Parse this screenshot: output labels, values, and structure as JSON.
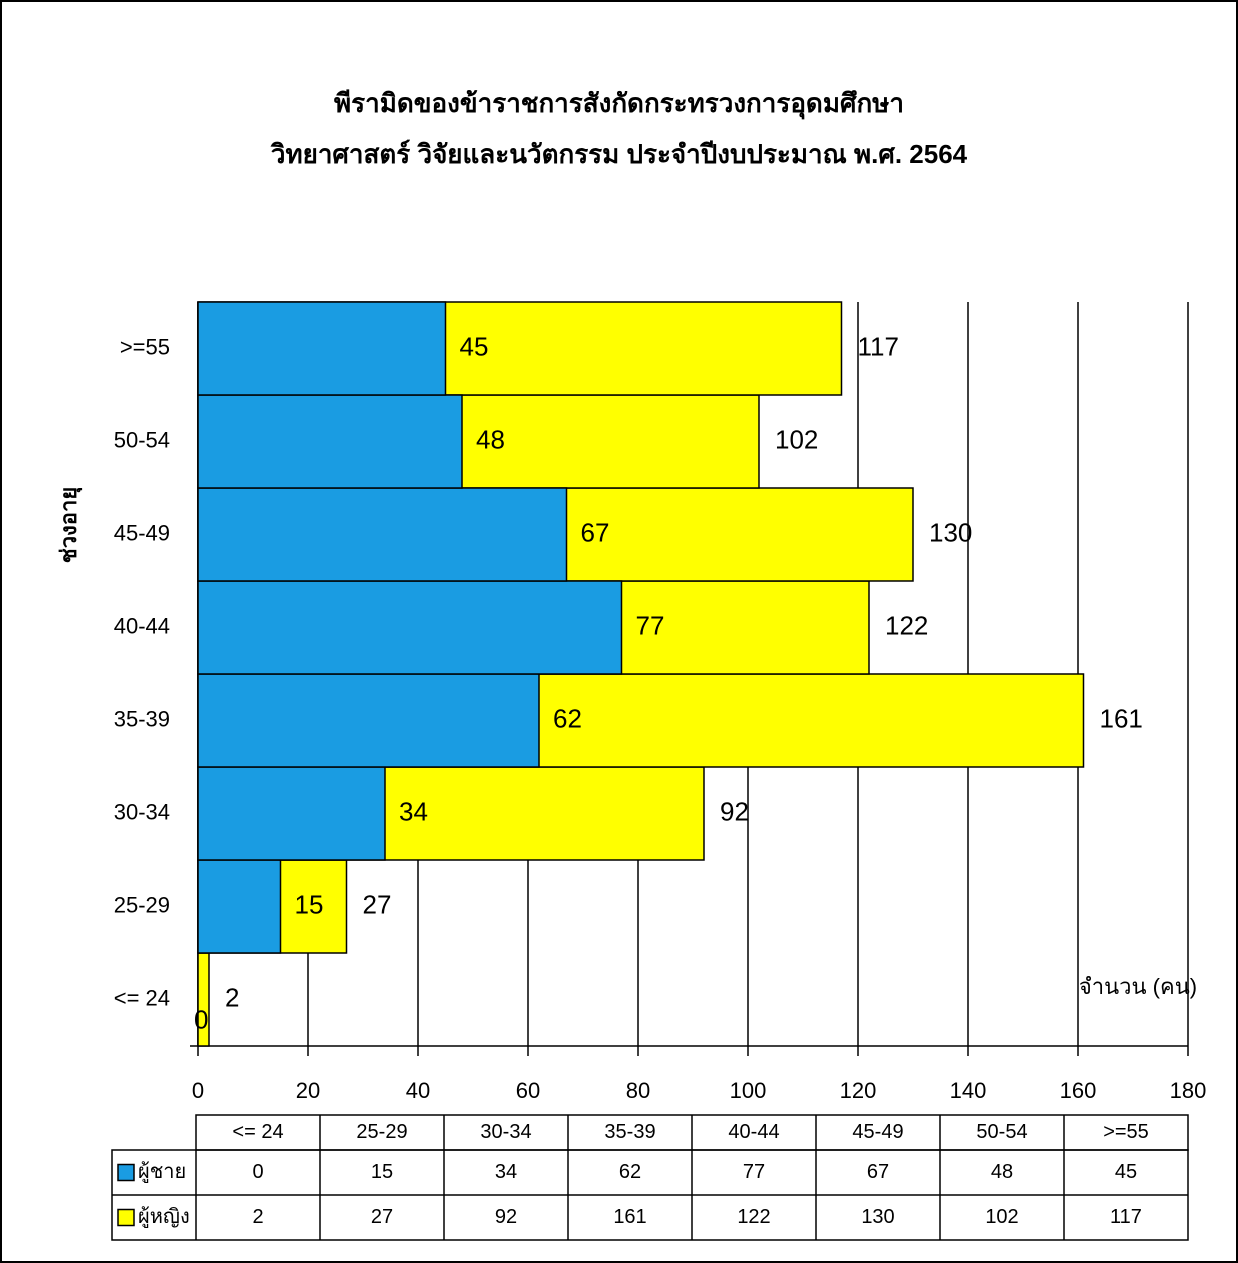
{
  "chart_data": {
    "type": "bar",
    "orientation": "horizontal",
    "overlap": true,
    "title": [
      "พีรามิดของข้าราชการสังกัดกระทรวงการอุดมศึกษา",
      "วิทยาศาสตร์ วิจัยและนวัตกรรม ประจำปีงบประมาณ พ.ศ. 2564"
    ],
    "y_label": "ช่วงอายุ",
    "x_label": "จำนวน (คน)",
    "categories": [
      "<= 24",
      "25-29",
      "30-34",
      "35-39",
      "40-44",
      "45-49",
      "50-54",
      ">=55"
    ],
    "series": [
      {
        "name": "ผู้ชาย",
        "color": "#1a9ce2",
        "values": [
          0,
          15,
          34,
          62,
          77,
          67,
          48,
          45
        ]
      },
      {
        "name": "ผู้หญิง",
        "color": "#ffff00",
        "values": [
          2,
          27,
          92,
          161,
          122,
          130,
          102,
          117
        ]
      }
    ],
    "xlim": [
      0,
      180
    ],
    "xticks": [
      0,
      20,
      40,
      60,
      80,
      100,
      120,
      140,
      160,
      180
    ],
    "grid": true,
    "data_table": true
  }
}
